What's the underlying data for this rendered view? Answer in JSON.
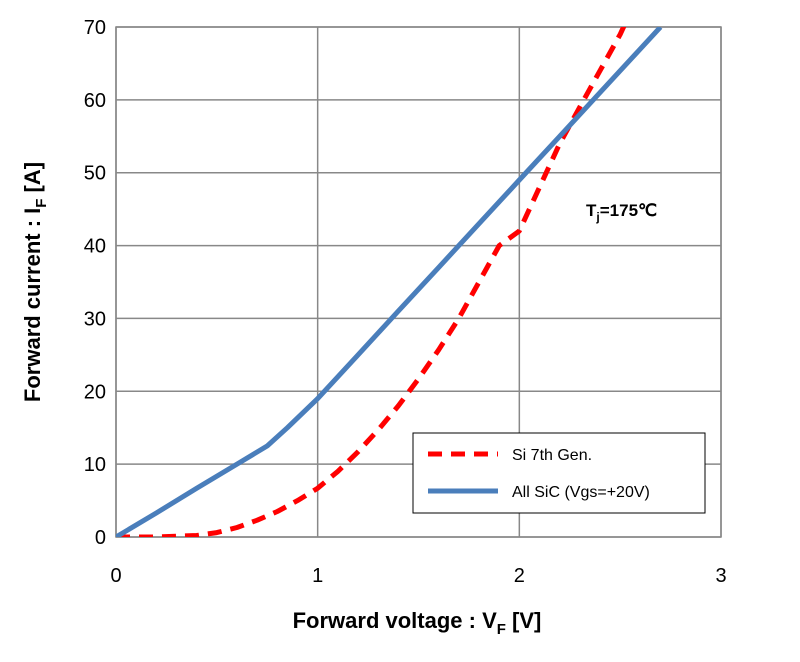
{
  "chart_data": {
    "type": "line",
    "xlabel": {
      "main": "Forward voltage : V",
      "sub": "F",
      "unit": " [V]"
    },
    "ylabel": {
      "main": "Forward current : I",
      "sub": "F",
      "unit": " [A]"
    },
    "xlim": [
      0,
      3
    ],
    "ylim": [
      0,
      70
    ],
    "x_ticks": [
      "0",
      "1",
      "2",
      "3"
    ],
    "y_ticks": [
      "0",
      "10",
      "20",
      "30",
      "40",
      "50",
      "60",
      "70"
    ],
    "grid": true,
    "legend_position": "bottom-right",
    "annotation": {
      "prefix": "T",
      "sub": "j",
      "suffix": "=175",
      "unit": "℃"
    },
    "series": [
      {
        "name": "Si 7th Gen.",
        "color": "#ff0000",
        "style": "dashed",
        "x": [
          0,
          0.2,
          0.4,
          0.5,
          0.6,
          0.7,
          0.8,
          0.9,
          1.0,
          1.1,
          1.2,
          1.3,
          1.4,
          1.5,
          1.6,
          1.7,
          1.8,
          1.9,
          2.0,
          2.1,
          2.2,
          2.3,
          2.4,
          2.5,
          2.55
        ],
        "y": [
          0,
          0,
          0.2,
          0.6,
          1.3,
          2.3,
          3.5,
          5.0,
          6.7,
          9.0,
          11.7,
          14.7,
          18.0,
          21.7,
          25.7,
          30.0,
          35.0,
          40.0,
          42.0,
          48.0,
          54.0,
          59.0,
          64.0,
          69.0,
          72.0
        ]
      },
      {
        "name": "All SiC (Vgs=+20V)",
        "color": "#4a7ebb",
        "style": "solid",
        "x": [
          0,
          0.2,
          0.4,
          0.6,
          0.75,
          0.85,
          1.0,
          1.2,
          1.4,
          1.6,
          1.8,
          2.0,
          2.2,
          2.4,
          2.6,
          2.7
        ],
        "y": [
          0,
          3.3,
          6.7,
          10.0,
          12.5,
          15.0,
          19.0,
          25.0,
          31.0,
          37.0,
          43.0,
          49.0,
          55.0,
          61.0,
          67.0,
          70.0
        ]
      }
    ]
  }
}
